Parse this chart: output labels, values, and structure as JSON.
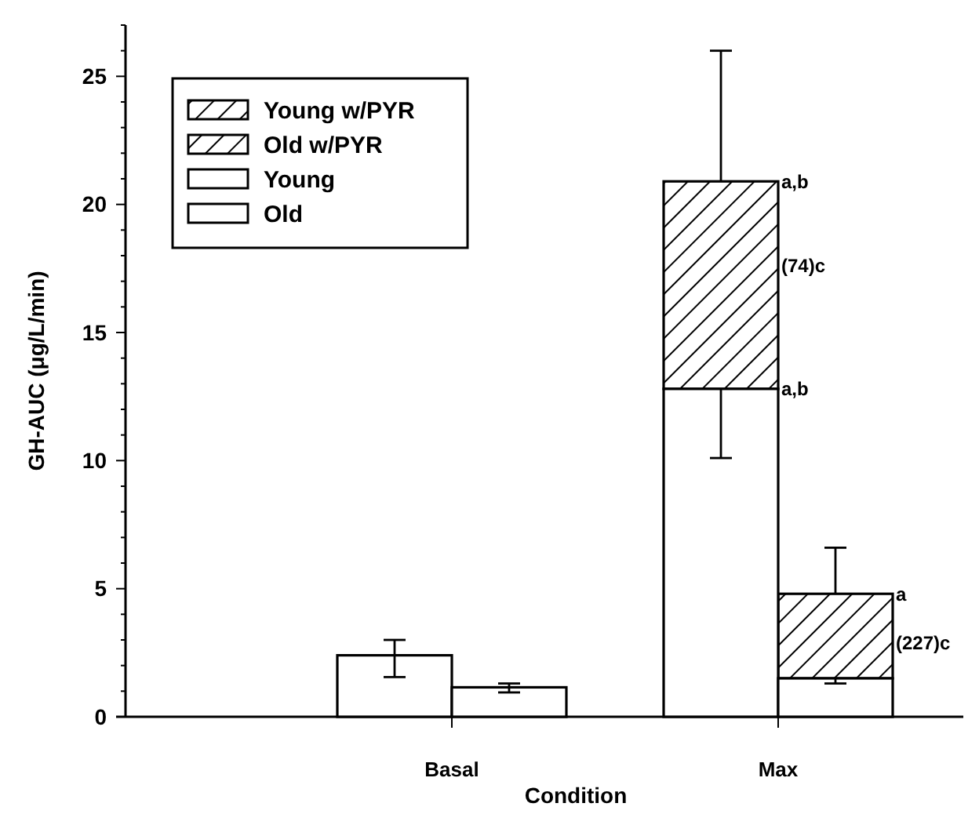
{
  "chart_data": {
    "type": "bar",
    "xlabel": "Condition",
    "ylabel": "GH-AUC (μg/L/min)",
    "categories": [
      "Basal",
      "Max"
    ],
    "series": [
      {
        "name": "Young w/PYR",
        "color": "#000000",
        "values": [
          null,
          8.1
        ],
        "base": [
          null,
          12.8
        ],
        "errors": [
          null,
          [
            20.9,
            26.0
          ]
        ]
      },
      {
        "name": "Old w/PYR",
        "color": "#000000",
        "values": [
          null,
          3.3
        ],
        "base": [
          null,
          1.5
        ],
        "errors": [
          null,
          [
            4.8,
            6.6
          ]
        ]
      },
      {
        "name": "Young",
        "color": "#ffffff",
        "values": [
          2.4,
          12.8
        ],
        "errors": [
          [
            1.55,
            3.0
          ],
          [
            10.1,
            12.8
          ]
        ]
      },
      {
        "name": "Old",
        "color": "#ffffff",
        "values": [
          1.15,
          1.5
        ],
        "errors": [
          [
            0.95,
            1.3
          ],
          [
            1.3,
            1.5
          ]
        ]
      }
    ],
    "ylim": [
      0,
      27
    ],
    "yticks": [
      0,
      {
        "value": 1,
        "label": null
      },
      {
        "value": 2,
        "label": null
      },
      {
        "value": 3,
        "label": null
      },
      {
        "value": 4,
        "label": null
      },
      5,
      {
        "value": 6,
        "label": null
      },
      {
        "value": 7,
        "label": null
      },
      {
        "value": 8,
        "label": null
      },
      {
        "value": 9,
        "label": null
      },
      10,
      {
        "value": 11,
        "label": null
      },
      {
        "value": 12,
        "label": null
      },
      {
        "value": 13,
        "label": null
      },
      {
        "value": 14,
        "label": null
      },
      15,
      {
        "value": 16,
        "label": null
      },
      {
        "value": 17,
        "label": null
      },
      {
        "value": 18,
        "label": null
      },
      {
        "value": 19,
        "label": null
      },
      20,
      {
        "value": 21,
        "label": null
      },
      {
        "value": 22,
        "label": null
      },
      {
        "value": 23,
        "label": null
      },
      {
        "value": 24,
        "label": null
      },
      25,
      {
        "value": 26,
        "label": null
      },
      {
        "value": 27,
        "label": null
      }
    ],
    "legend": "top left",
    "annotations": [
      {
        "text": "a,b",
        "x": "Max",
        "y": 20.9
      },
      {
        "text": "(74)c",
        "x": "Max",
        "y": 17.6
      },
      {
        "text": "a,b",
        "x": "Max",
        "y": 12.8
      },
      "a",
      "(227)c"
    ]
  }
}
